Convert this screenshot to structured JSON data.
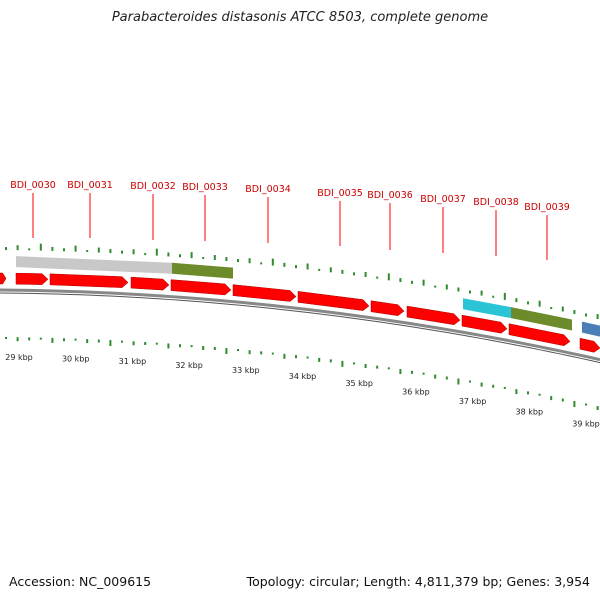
{
  "title": "Parabacteroides distasonis ATCC 8503, complete genome",
  "footer": {
    "accession": "Accession: NC_009615",
    "topology": "Topology: circular",
    "length": "Length: 4,811,379 bp",
    "genes": "Genes: 3,954"
  },
  "colors": {
    "gene": "#ff0000",
    "gene_label": "#cc0000",
    "gc_tick": "#2e8b2e",
    "backbone": "#888888",
    "feature_grey": "#c8c8c8",
    "feature_olive": "#6e8b2c",
    "feature_cyan": "#29c5d6",
    "feature_blue": "#4a7fb5"
  },
  "gene_labels": [
    "BDI_0030",
    "BDI_0031",
    "BDI_0032",
    "BDI_0033",
    "BDI_0034",
    "BDI_0035",
    "BDI_0036",
    "BDI_0037",
    "BDI_0038",
    "BDI_0039"
  ],
  "scale_labels": [
    "29 kbp",
    "30 kbp",
    "31 kbp",
    "32 kbp",
    "33 kbp",
    "34 kbp",
    "35 kbp",
    "36 kbp",
    "37 kbp",
    "38 kbp",
    "39 kbp"
  ]
}
